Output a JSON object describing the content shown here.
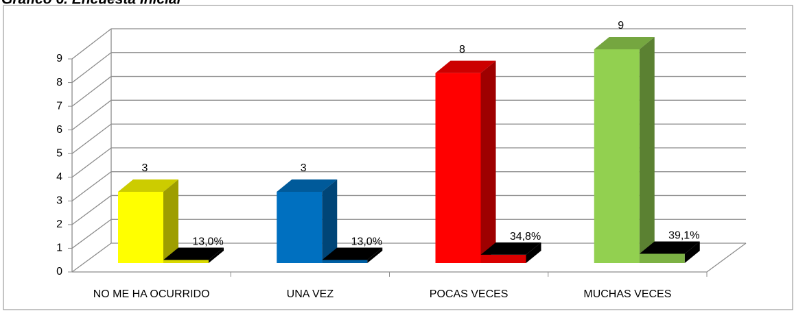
{
  "chart_data": {
    "type": "bar3d",
    "title": "Gráfico 6. Encuesta Inicial",
    "categories": [
      "NO ME HA OCURRIDO",
      "UNA VEZ",
      "POCAS VECES",
      "MUCHAS VECES"
    ],
    "colors": [
      "#ffff00",
      "#0070c0",
      "#ff0000",
      "#92d050"
    ],
    "series": [
      {
        "values": [
          3,
          3,
          8,
          9
        ]
      },
      {
        "values": [
          0.13,
          0.13,
          0.348,
          0.391
        ],
        "value_labels": [
          "13,0%",
          "13,0%",
          "34,8%",
          "39,1%"
        ]
      }
    ],
    "ylim": [
      0,
      9
    ],
    "yticks": [
      0,
      1,
      2,
      3,
      4,
      5,
      6,
      7,
      8,
      9
    ],
    "grid": true
  }
}
